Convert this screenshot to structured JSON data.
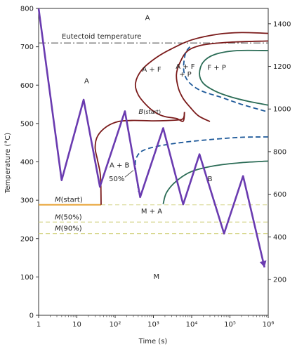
{
  "chart_data": {
    "type": "line",
    "title": "",
    "xlabel": "Time (s)",
    "ylabel": "Temperature (°C)",
    "xscale": "log",
    "xlim": [
      1,
      1000000
    ],
    "ylim": [
      0,
      800
    ],
    "ylim_right": [
      32,
      1472
    ],
    "grid": false,
    "x_tick_labels": [
      "1",
      "10",
      "10²",
      "10³",
      "10⁴",
      "10⁵",
      "10⁶"
    ],
    "y_tick_labels": [
      "0",
      "100",
      "200",
      "300",
      "400",
      "500",
      "600",
      "700",
      "800"
    ],
    "y_right_tick_labels": [
      "200",
      "400",
      "600",
      "800",
      "1000",
      "1200",
      "1400"
    ],
    "y_right_tick_values": [
      200,
      400,
      600,
      800,
      1000,
      1200,
      1400
    ],
    "colors": {
      "pearlite_curves": "#7a1a1a",
      "bainite_curves": "#2a6b55",
      "fifty_percent": "#1f5a9a",
      "path": "#6a3bb0",
      "martensite_start": "#e8a030",
      "martensite_levels": "#d8d890",
      "eutectoid": "#555555"
    },
    "horizontal_lines": [
      {
        "label": "Eutectoid temperature",
        "y": 710
      },
      {
        "label": "M(start)",
        "y": 288
      },
      {
        "label": "M(50%)",
        "y": 243
      },
      {
        "label": "M(90%)",
        "y": 213
      }
    ],
    "region_labels": {
      "austenite_top": "A",
      "austenite_left": "A",
      "a_plus_f": "A + F",
      "a_plus_f_plus_p": "A + F\n+ P",
      "f_plus_p": "F + P",
      "b_start": "B(start)",
      "a_plus_b": "A + B",
      "fifty": "50%",
      "m_plus_a": "M + A",
      "bainite": "B",
      "martensite": "M"
    },
    "series": [
      {
        "id": "path",
        "points": [
          [
            1,
            800
          ],
          [
            4,
            352
          ],
          [
            15,
            562
          ],
          [
            40,
            335
          ],
          [
            180,
            532
          ],
          [
            450,
            308
          ],
          [
            1800,
            488
          ],
          [
            6000,
            289
          ],
          [
            16000,
            420
          ],
          [
            70000,
            213
          ],
          [
            220000,
            363
          ],
          [
            800000,
            125
          ]
        ]
      },
      {
        "id": "pearlite-start",
        "points": [
          [
            1000000,
            735
          ],
          [
            200000,
            737
          ],
          [
            50000,
            733
          ],
          [
            10000,
            718
          ],
          [
            3000,
            695
          ],
          [
            1200,
            672
          ],
          [
            500,
            640
          ],
          [
            340,
            605
          ],
          [
            400,
            575
          ],
          [
            700,
            545
          ],
          [
            1200,
            527
          ],
          [
            2000,
            518
          ],
          [
            4000,
            513
          ],
          [
            6000,
            506
          ],
          [
            6500,
            530
          ]
        ]
      },
      {
        "id": "bainite-start",
        "points": [
          [
            6500,
            530
          ],
          [
            6000,
            513
          ],
          [
            4000,
            509
          ],
          [
            1000,
            507
          ],
          [
            300,
            508
          ],
          [
            120,
            505
          ],
          [
            60,
            492
          ],
          [
            35,
            468
          ],
          [
            30,
            438
          ],
          [
            34,
            408
          ],
          [
            40,
            375
          ],
          [
            42,
            348
          ],
          [
            43,
            288
          ]
        ]
      },
      {
        "id": "pearlite-end",
        "points": [
          [
            1000000,
            715
          ],
          [
            100000,
            712
          ],
          [
            20000,
            705
          ],
          [
            8000,
            690
          ],
          [
            5000,
            660
          ],
          [
            4000,
            628
          ],
          [
            4500,
            592
          ],
          [
            6000,
            565
          ],
          [
            9000,
            543
          ],
          [
            15000,
            520
          ],
          [
            30000,
            505
          ]
        ]
      },
      {
        "id": "pearlite-50",
        "points": [
          [
            9000,
            700
          ],
          [
            7000,
            685
          ],
          [
            6200,
            655
          ],
          [
            6500,
            628
          ],
          [
            9000,
            605
          ],
          [
            18000,
            585
          ],
          [
            60000,
            568
          ],
          [
            200000,
            550
          ],
          [
            1000000,
            530
          ]
        ]
      },
      {
        "id": "fp-boundary",
        "points": [
          [
            1000000,
            690
          ],
          [
            150000,
            690
          ],
          [
            40000,
            680
          ],
          [
            20000,
            660
          ],
          [
            16000,
            630
          ],
          [
            20000,
            605
          ],
          [
            40000,
            585
          ],
          [
            100000,
            570
          ],
          [
            300000,
            558
          ],
          [
            1000000,
            548
          ]
        ]
      },
      {
        "id": "bainite-50",
        "points": [
          [
            1000000,
            465
          ],
          [
            200000,
            464
          ],
          [
            30000,
            458
          ],
          [
            5000,
            450
          ],
          [
            1200,
            440
          ],
          [
            500,
            428
          ],
          [
            350,
            408
          ],
          [
            340,
            385
          ],
          [
            370,
            355
          ],
          [
            410,
            322
          ]
        ]
      },
      {
        "id": "bainite-end",
        "points": [
          [
            1000000,
            402
          ],
          [
            200000,
            398
          ],
          [
            40000,
            390
          ],
          [
            10000,
            375
          ],
          [
            4000,
            350
          ],
          [
            2200,
            320
          ],
          [
            1800,
            290
          ]
        ]
      }
    ]
  }
}
